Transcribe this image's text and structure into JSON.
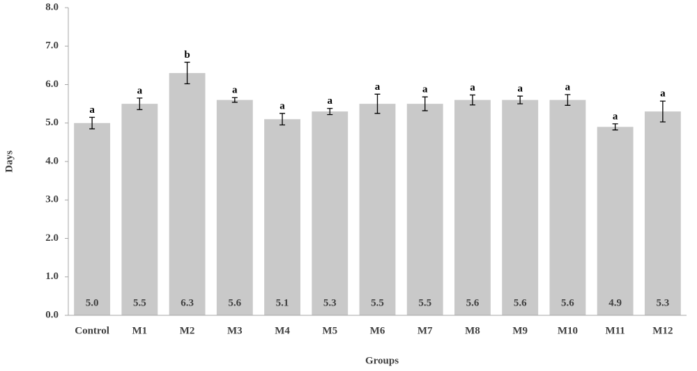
{
  "chart_data": {
    "type": "bar",
    "x_label": "Groups",
    "y_label": "Days",
    "categories": [
      "Control",
      "M1",
      "M2",
      "M3",
      "M4",
      "M5",
      "M6",
      "M7",
      "M8",
      "M9",
      "M10",
      "M11",
      "M12"
    ],
    "values": [
      5.0,
      5.5,
      6.3,
      5.6,
      5.1,
      5.3,
      5.5,
      5.5,
      5.6,
      5.6,
      5.6,
      4.9,
      5.3
    ],
    "value_labels": [
      "5.0",
      "5.5",
      "6.3",
      "5.6",
      "5.1",
      "5.3",
      "5.5",
      "5.5",
      "5.6",
      "5.6",
      "5.6",
      "4.9",
      "5.3"
    ],
    "errors": [
      0.15,
      0.15,
      0.28,
      0.06,
      0.15,
      0.08,
      0.25,
      0.18,
      0.13,
      0.1,
      0.14,
      0.08,
      0.27
    ],
    "letters": [
      "a",
      "a",
      "b",
      "a",
      "a",
      "a",
      "a",
      "a",
      "a",
      "a",
      "a",
      "a",
      "a"
    ],
    "color": "#c9c9c9",
    "ylim": [
      0,
      8
    ],
    "yticks": [
      {
        "value": 0,
        "label": "0.0"
      },
      {
        "value": 1,
        "label": "1.0"
      },
      {
        "value": 2,
        "label": "2.0"
      },
      {
        "value": 3,
        "label": "3.0"
      },
      {
        "value": 4,
        "label": "4.0"
      },
      {
        "value": 5,
        "label": "5.0"
      },
      {
        "value": 6,
        "label": "6.0"
      },
      {
        "value": 7,
        "label": "7.0"
      },
      {
        "value": 8,
        "label": "8.0"
      }
    ],
    "grid": false
  }
}
